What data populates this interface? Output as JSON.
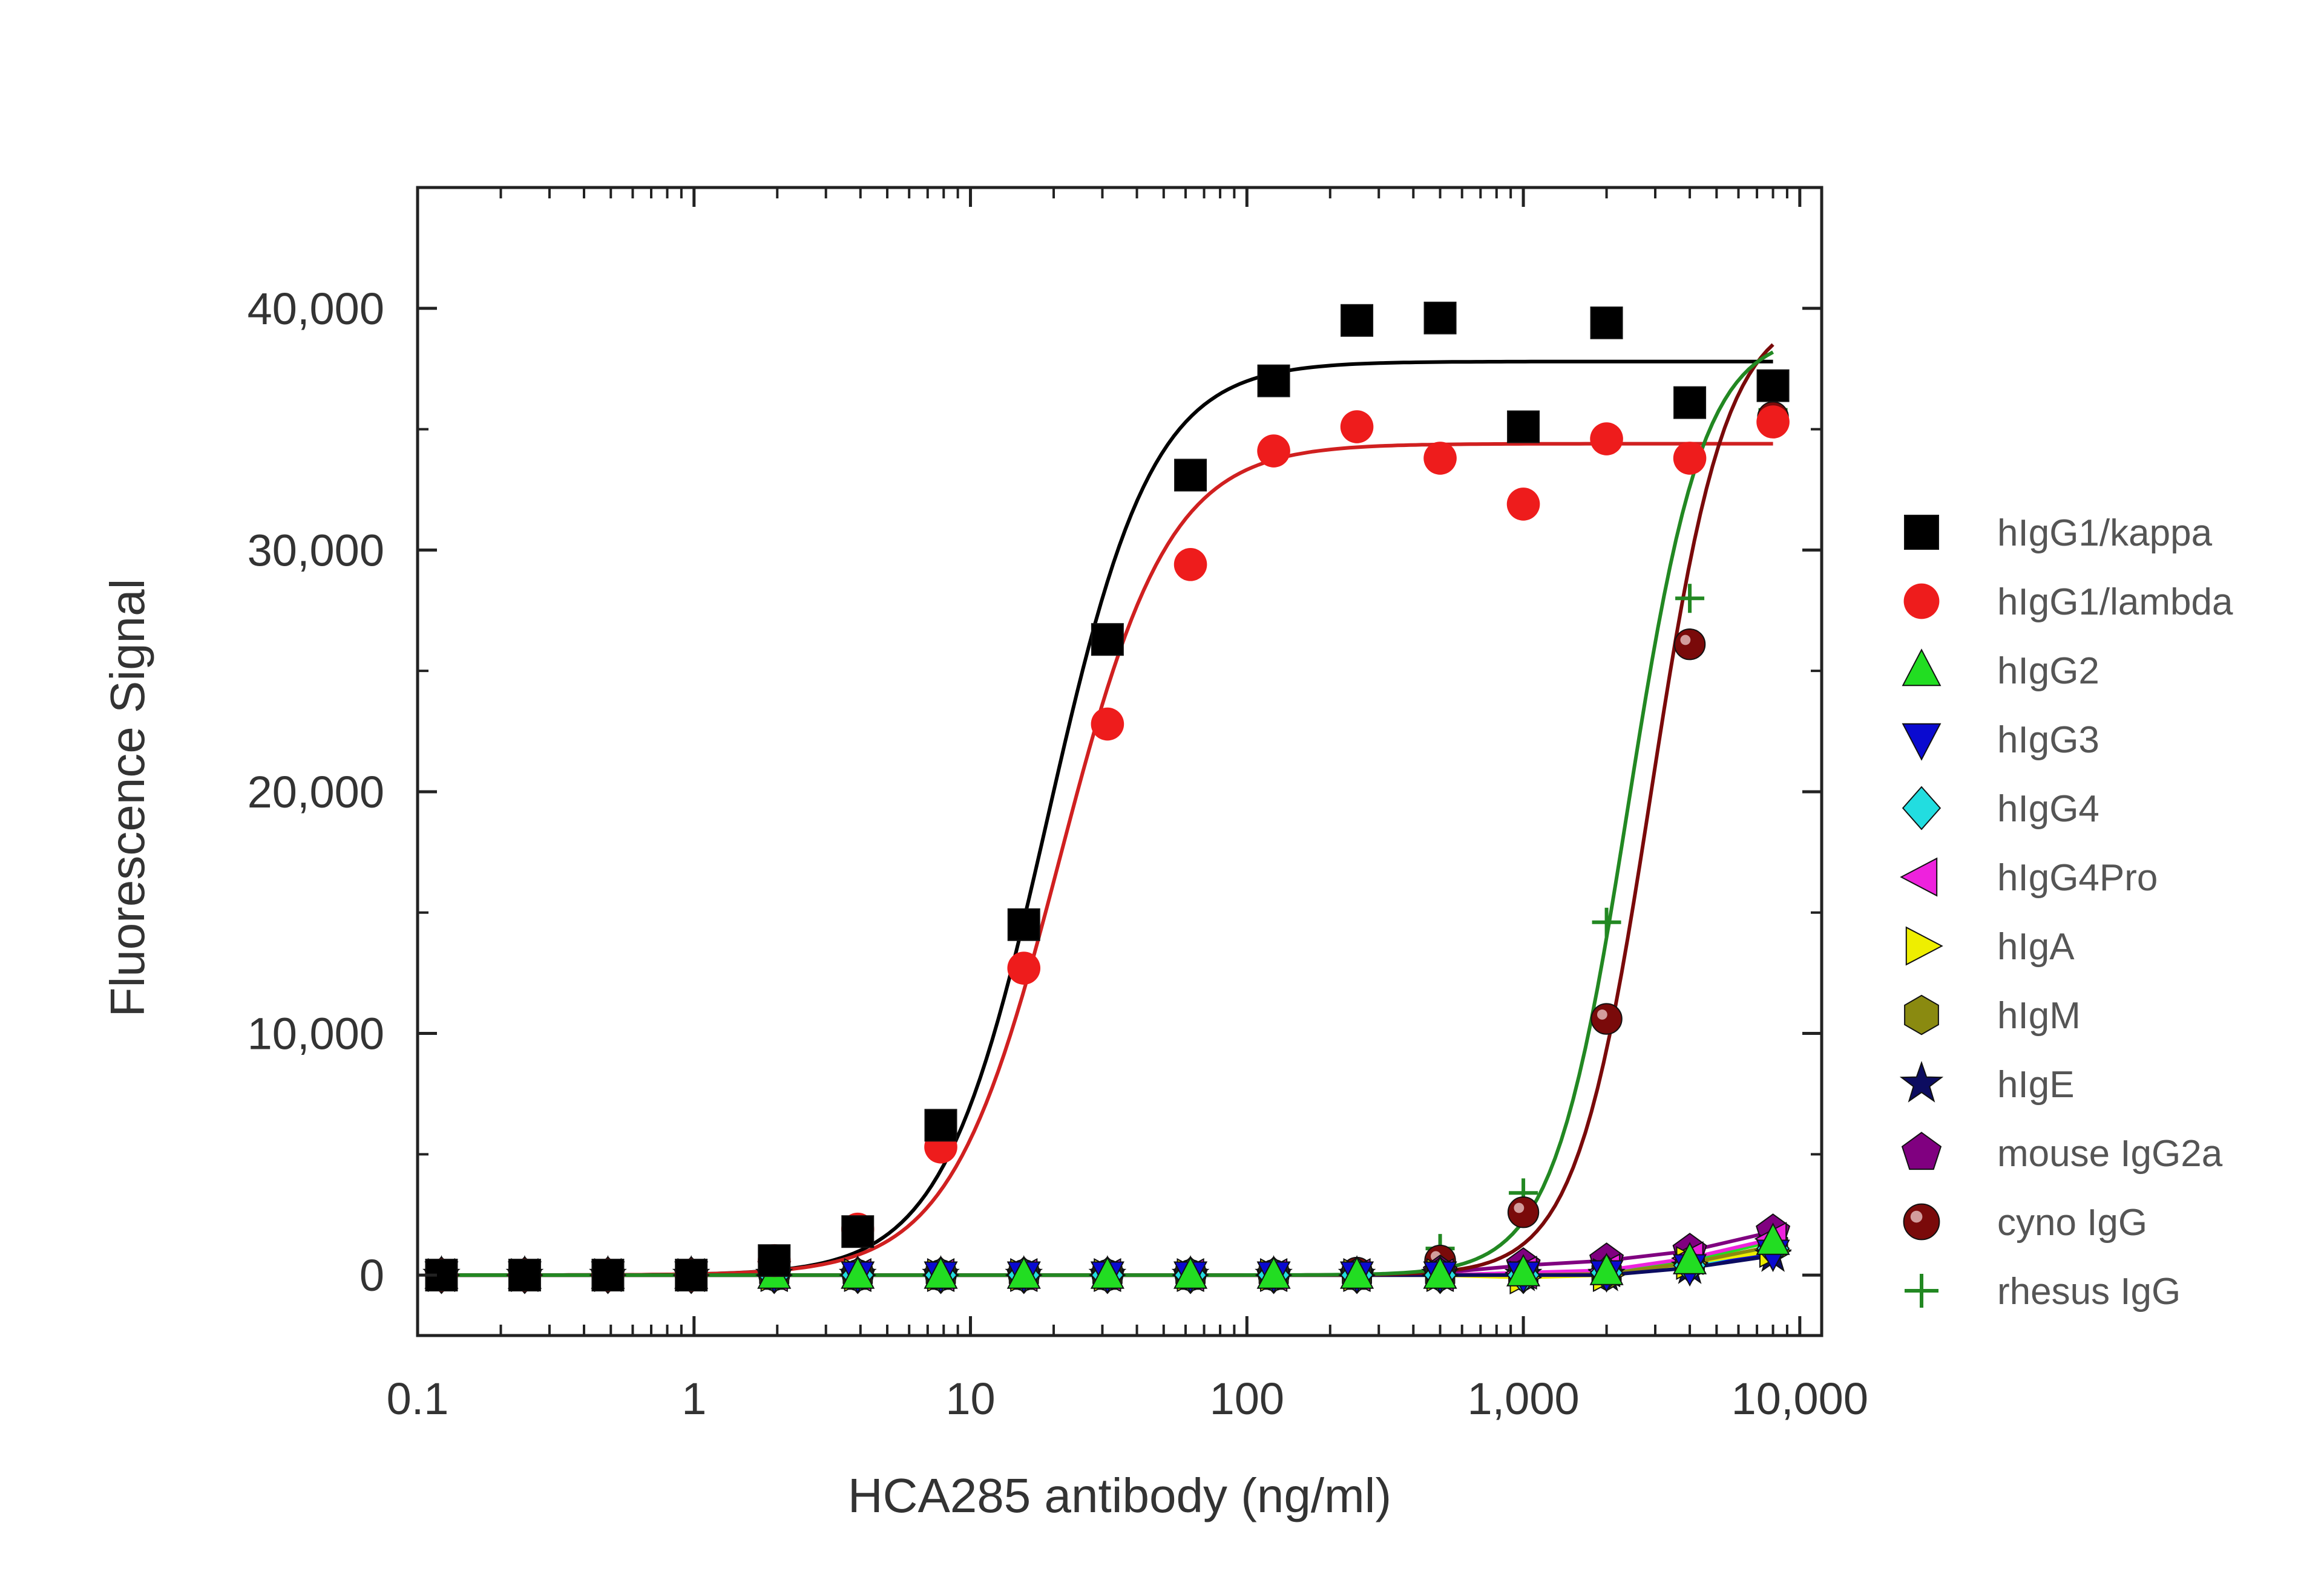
{
  "chart_data": {
    "type": "scatter",
    "xlabel": "HCA285 antibody (ng/ml)",
    "ylabel": "Fluorescence Signal",
    "x_scale": "log",
    "xlim": [
      0.1,
      12000
    ],
    "ylim": [
      -2500,
      45000
    ],
    "x_ticks": [
      {
        "value": 0.1,
        "label": "0.1"
      },
      {
        "value": 1,
        "label": "1"
      },
      {
        "value": 10,
        "label": "10"
      },
      {
        "value": 100,
        "label": "100"
      },
      {
        "value": 1000,
        "label": "1,000"
      },
      {
        "value": 10000,
        "label": "10,000"
      }
    ],
    "y_ticks": [
      {
        "value": 0,
        "label": "0"
      },
      {
        "value": 10000,
        "label": "10,000"
      },
      {
        "value": 20000,
        "label": "20,000"
      },
      {
        "value": 30000,
        "label": "30,000"
      },
      {
        "value": 40000,
        "label": "40,000"
      }
    ],
    "legend_position": "right",
    "grid": false,
    "series": [
      {
        "name": "hIgG1/kappa",
        "marker": "square",
        "color": "#000000",
        "x": [
          0.122,
          0.244,
          0.488,
          0.977,
          1.95,
          3.91,
          7.81,
          15.6,
          31.3,
          62.5,
          125,
          250,
          500,
          1000,
          2000,
          4000,
          8000
        ],
        "y": [
          0,
          0,
          0,
          0,
          600,
          1800,
          6200,
          14500,
          26300,
          33100,
          37000,
          39500,
          39600,
          35100,
          39400,
          36100,
          36800
        ],
        "fit": {
          "bottom": 0,
          "top": 37800,
          "ec50": 19,
          "hill": 2.3
        }
      },
      {
        "name": "hIgG1/lambda",
        "marker": "circle",
        "color": "#ee1c1c",
        "x": [
          0.122,
          0.244,
          0.488,
          0.977,
          1.95,
          3.91,
          7.81,
          15.6,
          31.3,
          62.5,
          125,
          250,
          500,
          1000,
          2000,
          4000,
          8000
        ],
        "y": [
          0,
          0,
          0,
          0,
          600,
          1900,
          5300,
          12700,
          22800,
          29400,
          34100,
          35100,
          33800,
          31900,
          34600,
          33800,
          35300
        ],
        "fit": {
          "bottom": 0,
          "top": 34400,
          "ec50": 21,
          "hill": 2.2
        }
      },
      {
        "name": "hIgG2",
        "marker": "triangle-up",
        "color": "#22dd22",
        "x": [
          0.122,
          0.244,
          0.488,
          0.977,
          1.95,
          3.91,
          7.81,
          15.6,
          31.3,
          62.5,
          125,
          250,
          500,
          1000,
          2000,
          4000,
          8000
        ],
        "y": [
          0,
          0,
          0,
          0,
          0,
          0,
          0,
          0,
          0,
          0,
          0,
          0,
          0,
          100,
          150,
          600,
          1400
        ]
      },
      {
        "name": "hIgG3",
        "marker": "triangle-down",
        "color": "#0a0ad0",
        "x": [
          0.122,
          0.244,
          0.488,
          0.977,
          1.95,
          3.91,
          7.81,
          15.6,
          31.3,
          62.5,
          125,
          250,
          500,
          1000,
          2000,
          4000,
          8000
        ],
        "y": [
          0,
          0,
          0,
          0,
          0,
          0,
          0,
          0,
          0,
          0,
          0,
          0,
          0,
          0,
          50,
          300,
          900
        ]
      },
      {
        "name": "hIgG4",
        "marker": "diamond",
        "color": "#22dde0",
        "x": [
          0.122,
          0.244,
          0.488,
          0.977,
          1.95,
          3.91,
          7.81,
          15.6,
          31.3,
          62.5,
          125,
          250,
          500,
          1000,
          2000,
          4000,
          8000
        ],
        "y": [
          0,
          0,
          0,
          0,
          0,
          0,
          0,
          0,
          0,
          0,
          0,
          0,
          0,
          0,
          100,
          400,
          1100
        ]
      },
      {
        "name": "hIgG4Pro",
        "marker": "triangle-left",
        "color": "#ee22dd",
        "x": [
          0.122,
          0.244,
          0.488,
          0.977,
          1.95,
          3.91,
          7.81,
          15.6,
          31.3,
          62.5,
          125,
          250,
          500,
          1000,
          2000,
          4000,
          8000
        ],
        "y": [
          0,
          0,
          0,
          0,
          0,
          0,
          0,
          0,
          0,
          0,
          0,
          0,
          0,
          100,
          200,
          700,
          1500
        ]
      },
      {
        "name": "hIgA",
        "marker": "triangle-right",
        "color": "#eeee00",
        "x": [
          0.122,
          0.244,
          0.488,
          0.977,
          1.95,
          3.91,
          7.81,
          15.6,
          31.3,
          62.5,
          125,
          250,
          500,
          1000,
          2000,
          4000,
          8000
        ],
        "y": [
          0,
          0,
          0,
          0,
          0,
          0,
          0,
          0,
          0,
          0,
          0,
          0,
          0,
          -100,
          0,
          500,
          1000
        ]
      },
      {
        "name": "hIgM",
        "marker": "hexagon",
        "color": "#8a8a10",
        "x": [
          0.122,
          0.244,
          0.488,
          0.977,
          1.95,
          3.91,
          7.81,
          15.6,
          31.3,
          62.5,
          125,
          250,
          500,
          1000,
          2000,
          4000,
          8000
        ],
        "y": [
          0,
          0,
          0,
          0,
          0,
          0,
          0,
          0,
          0,
          0,
          0,
          0,
          0,
          0,
          50,
          500,
          1200
        ]
      },
      {
        "name": "hIgE",
        "marker": "star",
        "color": "#0c0c60",
        "x": [
          0.122,
          0.244,
          0.488,
          0.977,
          1.95,
          3.91,
          7.81,
          15.6,
          31.3,
          62.5,
          125,
          250,
          500,
          1000,
          2000,
          4000,
          8000
        ],
        "y": [
          0,
          0,
          0,
          0,
          0,
          0,
          0,
          0,
          0,
          0,
          0,
          0,
          0,
          0,
          0,
          300,
          800
        ]
      },
      {
        "name": "mouse IgG2a",
        "marker": "pentagon",
        "color": "#800080",
        "x": [
          0.122,
          0.244,
          0.488,
          0.977,
          1.95,
          3.91,
          7.81,
          15.6,
          31.3,
          62.5,
          125,
          250,
          500,
          1000,
          2000,
          4000,
          8000
        ],
        "y": [
          0,
          0,
          0,
          0,
          0,
          0,
          0,
          0,
          0,
          0,
          0,
          0,
          100,
          400,
          600,
          1000,
          1800
        ]
      },
      {
        "name": "cyno IgG",
        "marker": "sphere",
        "color": "#7a0a0a",
        "x": [
          0.122,
          0.244,
          0.488,
          0.977,
          1.95,
          3.91,
          7.81,
          15.6,
          31.3,
          62.5,
          125,
          250,
          500,
          1000,
          2000,
          4000,
          8000
        ],
        "y": [
          0,
          0,
          0,
          0,
          0,
          0,
          0,
          0,
          0,
          0,
          0,
          100,
          600,
          2600,
          10600,
          26100,
          35500
        ],
        "fit": {
          "bottom": 0,
          "top": 40000,
          "ec50": 2900,
          "hill": 3.2
        }
      },
      {
        "name": "rhesus IgG",
        "marker": "cross",
        "color": "#228822",
        "x": [
          0.122,
          0.244,
          0.488,
          0.977,
          1.95,
          3.91,
          7.81,
          15.6,
          31.3,
          62.5,
          125,
          250,
          500,
          1000,
          2000,
          4000,
          8000
        ],
        "y": [
          0,
          0,
          0,
          0,
          0,
          0,
          0,
          0,
          0,
          0,
          0,
          150,
          1100,
          3400,
          14600,
          28000,
          35800
        ],
        "fit": {
          "bottom": 0,
          "top": 39000,
          "ec50": 2400,
          "hill": 3.2
        }
      }
    ]
  }
}
